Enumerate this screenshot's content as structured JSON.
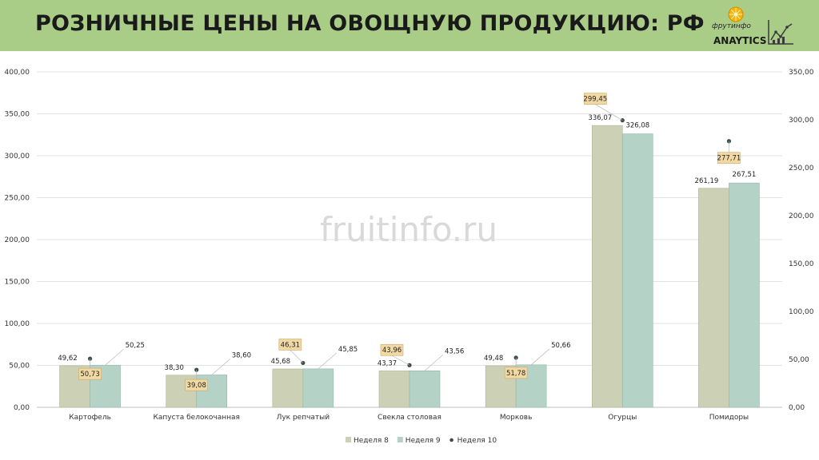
{
  "header": {
    "title": "РОЗНИЧНЫЕ ЦЕНЫ НА ОВОЩНУЮ ПРОДУКЦИЮ: РФ",
    "logo_brand": "фрутинфо",
    "logo_analytics": "ANAYTICS"
  },
  "watermark": "fruitinfo.ru",
  "colors": {
    "header_bg": "#a9cc86",
    "week8": "#ccd0b4",
    "week9": "#b5d2c7",
    "week10_marker": "#3c4f44",
    "label_box": "#f2d9a4",
    "label_box_border": "#c9a969"
  },
  "chart_data": {
    "type": "bar",
    "categories": [
      "Картофель",
      "Капуста белокочанная",
      "Лук репчатый",
      "Свекла столовая",
      "Морковь",
      "Огурцы",
      "Помидоры"
    ],
    "series": [
      {
        "name": "Неделя 8",
        "axis": "left",
        "values": [
          49.62,
          38.3,
          45.68,
          43.37,
          49.48,
          336.07,
          261.19
        ],
        "labels": [
          "49,62",
          "38,30",
          "45,68",
          "43,37",
          "49,48",
          "336,07",
          "261,19"
        ]
      },
      {
        "name": "Неделя 9",
        "axis": "left",
        "values": [
          50.25,
          38.6,
          45.85,
          43.56,
          50.66,
          326.08,
          267.51
        ],
        "labels": [
          "50,25",
          "38,60",
          "45,85",
          "43,56",
          "50,66",
          "326,08",
          "267,51"
        ]
      },
      {
        "name": "Неделя 10",
        "axis": "right",
        "kind": "marker",
        "values": [
          50.73,
          39.08,
          46.31,
          43.96,
          51.78,
          299.45,
          277.71
        ],
        "labels": [
          "50,73",
          "39,08",
          "46,31",
          "43,96",
          "51,78",
          "299,45",
          "277,71"
        ]
      }
    ],
    "ylim_left": [
      0,
      400
    ],
    "ylim_right": [
      0,
      350
    ],
    "yticks_left": [
      "0,00",
      "50,00",
      "100,00",
      "150,00",
      "200,00",
      "250,00",
      "300,00",
      "350,00",
      "400,00"
    ],
    "yticks_right": [
      "0,00",
      "50,00",
      "100,00",
      "150,00",
      "200,00",
      "250,00",
      "300,00",
      "350,00"
    ],
    "grid": true,
    "legend": "bottom"
  }
}
